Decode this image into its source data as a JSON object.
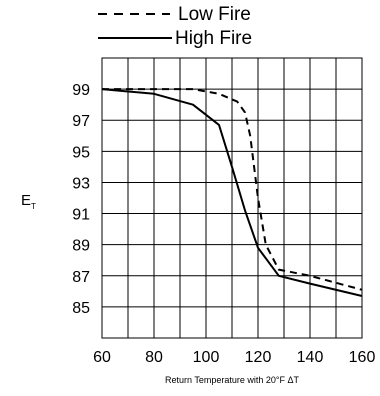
{
  "chart_data": {
    "type": "line",
    "title": "",
    "xlabel": "Return Temperature with 20°F ΔT",
    "ylabel": "E",
    "ylabel_subscript": "T",
    "xlim": [
      60,
      160
    ],
    "ylim": [
      83,
      101
    ],
    "x_ticks": [
      60,
      80,
      100,
      120,
      140,
      160
    ],
    "y_ticks": [
      85,
      87,
      89,
      91,
      93,
      95,
      97,
      99
    ],
    "grid": true,
    "legend_position": "top-right",
    "series": [
      {
        "name": "Low Fire",
        "style": "dashed",
        "color": "#000000",
        "x": [
          60,
          80,
          95,
          105,
          112,
          115,
          117,
          120,
          123,
          128,
          140,
          160
        ],
        "y": [
          99.0,
          99.0,
          99.0,
          98.7,
          98.2,
          97.5,
          96.0,
          92.0,
          89.0,
          87.4,
          87.0,
          86.1
        ]
      },
      {
        "name": "High Fire",
        "style": "solid",
        "color": "#000000",
        "x": [
          60,
          80,
          95,
          105,
          110,
          115,
          120,
          128,
          140,
          160
        ],
        "y": [
          99.0,
          98.7,
          98.0,
          96.7,
          94.0,
          91.2,
          88.8,
          87.0,
          86.5,
          85.7
        ]
      }
    ]
  }
}
